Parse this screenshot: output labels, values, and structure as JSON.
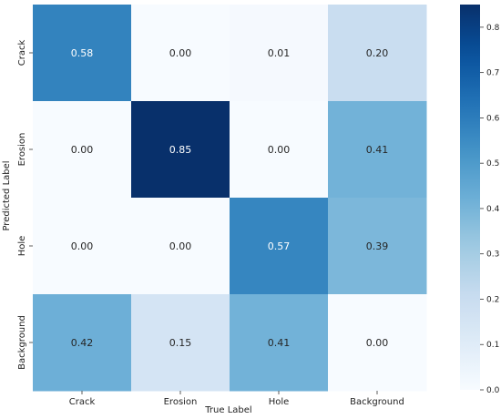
{
  "chart_data": {
    "type": "heatmap",
    "title": "",
    "xlabel": "True Label",
    "ylabel": "Predicted Label",
    "x_categories": [
      "Crack",
      "Erosion",
      "Hole",
      "Background"
    ],
    "y_categories": [
      "Crack",
      "Erosion",
      "Hole",
      "Background"
    ],
    "values": [
      [
        0.58,
        0.0,
        0.01,
        0.2
      ],
      [
        0.0,
        0.85,
        0.0,
        0.41
      ],
      [
        0.0,
        0.0,
        0.57,
        0.39
      ],
      [
        0.42,
        0.15,
        0.41,
        0.0
      ]
    ],
    "cell_labels": [
      [
        "0.58",
        "0.00",
        "0.01",
        "0.20"
      ],
      [
        "0.00",
        "0.85",
        "0.00",
        "0.41"
      ],
      [
        "0.00",
        "0.00",
        "0.57",
        "0.39"
      ],
      [
        "0.42",
        "0.15",
        "0.41",
        "0.00"
      ]
    ],
    "colormap": "Blues",
    "colorbar": {
      "range": [
        0.0,
        0.85
      ],
      "ticks": [
        "0.0",
        "0.1",
        "0.2",
        "0.3",
        "0.4",
        "0.5",
        "0.6",
        "0.7",
        "0.8"
      ],
      "tick_values": [
        0.0,
        0.1,
        0.2,
        0.3,
        0.4,
        0.5,
        0.6,
        0.7,
        0.8
      ]
    },
    "grid": false,
    "legend": "right"
  }
}
